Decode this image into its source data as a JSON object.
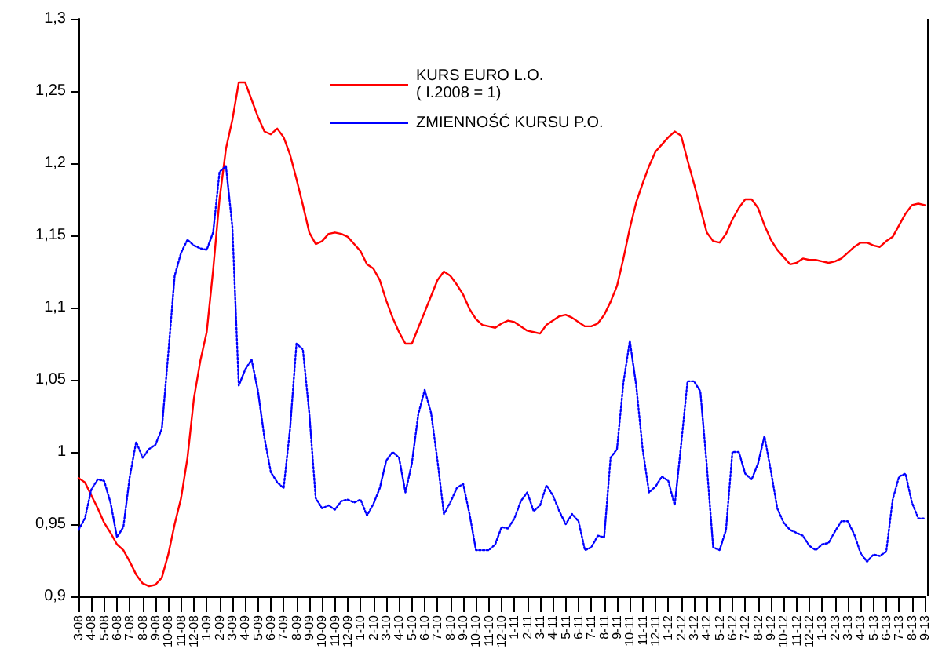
{
  "chart_data": {
    "type": "line",
    "categories": [
      "3-08",
      null,
      "4-08",
      null,
      "5-08",
      null,
      "6-08",
      null,
      "7-08",
      null,
      "8-08",
      null,
      "9-08",
      null,
      "10-08",
      null,
      "11-08",
      null,
      "12-08",
      null,
      "1-09",
      null,
      "2-09",
      null,
      "3-09",
      null,
      "4-09",
      null,
      "5-09",
      null,
      "6-09",
      null,
      "7-09",
      null,
      "8-09",
      null,
      "9-09",
      null,
      "10-09",
      null,
      "11-09",
      null,
      "12-09",
      null,
      "1-10",
      null,
      "2-10",
      null,
      "3-10",
      null,
      "4-10",
      null,
      "5-10",
      null,
      "6-10",
      null,
      "7-10",
      null,
      "8-10",
      null,
      "9-10",
      null,
      "10-10",
      null,
      "11-10",
      null,
      "12-10",
      null,
      "1-11",
      null,
      "2-11",
      null,
      "3-11",
      null,
      "4-11",
      null,
      "5-11",
      null,
      "6-11",
      null,
      "7-11",
      null,
      "8-11",
      null,
      "9-11",
      null,
      "10-11",
      null,
      "11-11",
      null,
      "12-11",
      null,
      "1-12",
      null,
      "2-12",
      null,
      "3-12",
      null,
      "4-12",
      null,
      "5-12",
      null,
      "6-12",
      null,
      "7-12",
      null,
      "8-12",
      null,
      "9-12",
      null,
      "10-12",
      null,
      "11-12",
      null,
      "12-12",
      null,
      "1-13",
      null,
      "2-13",
      null,
      "3-13",
      null,
      "4-13",
      null,
      "5-13",
      null,
      "6-13",
      null,
      "7-13",
      null,
      "8-13",
      null,
      "9-13"
    ],
    "series": [
      {
        "name": "KURS EURO L.O.\n( I.2008 = 1)",
        "color": "#ff0000",
        "line_style": "solid",
        "values": [
          0.982,
          0.979,
          0.97,
          0.961,
          0.951,
          0.944,
          0.936,
          0.932,
          0.924,
          0.915,
          0.909,
          0.907,
          0.908,
          0.913,
          0.929,
          0.95,
          0.968,
          0.996,
          1.037,
          1.063,
          1.083,
          1.126,
          1.175,
          1.21,
          1.23,
          1.256,
          1.256,
          1.244,
          1.232,
          1.222,
          1.22,
          1.224,
          1.218,
          1.206,
          1.189,
          1.171,
          1.152,
          1.144,
          1.146,
          1.151,
          1.152,
          1.151,
          1.149,
          1.144,
          1.139,
          1.13,
          1.127,
          1.119,
          1.105,
          1.093,
          1.083,
          1.075,
          1.075,
          1.086,
          1.097,
          1.108,
          1.119,
          1.125,
          1.122,
          1.116,
          1.109,
          1.099,
          1.092,
          1.088,
          1.087,
          1.086,
          1.089,
          1.091,
          1.09,
          1.087,
          1.084,
          1.083,
          1.082,
          1.088,
          1.091,
          1.094,
          1.095,
          1.093,
          1.09,
          1.087,
          1.087,
          1.089,
          1.095,
          1.104,
          1.115,
          1.134,
          1.155,
          1.173,
          1.186,
          1.198,
          1.208,
          1.213,
          1.218,
          1.222,
          1.219,
          1.202,
          1.186,
          1.169,
          1.152,
          1.146,
          1.145,
          1.151,
          1.161,
          1.169,
          1.175,
          1.175,
          1.169,
          1.157,
          1.147,
          1.14,
          1.135,
          1.13,
          1.131,
          1.134,
          1.133,
          1.133,
          1.132,
          1.131,
          1.132,
          1.134,
          1.138,
          1.142,
          1.145,
          1.145,
          1.143,
          1.142,
          1.146,
          1.149,
          1.157,
          1.165,
          1.171,
          1.172,
          1.171
        ]
      },
      {
        "name": "ZMIENNOŚĆ KURSU P.O.",
        "color": "#0000ff",
        "line_style": "dotted",
        "values": [
          0.946,
          0.954,
          0.974,
          0.981,
          0.98,
          0.965,
          0.941,
          0.948,
          0.983,
          1.007,
          0.996,
          1.002,
          1.005,
          1.016,
          1.068,
          1.122,
          1.138,
          1.147,
          1.143,
          1.141,
          1.14,
          1.152,
          1.194,
          1.198,
          1.156,
          1.046,
          1.057,
          1.064,
          1.042,
          1.01,
          0.986,
          0.979,
          0.975,
          1.016,
          1.075,
          1.071,
          1.027,
          0.968,
          0.961,
          0.963,
          0.96,
          0.966,
          0.967,
          0.965,
          0.967,
          0.956,
          0.964,
          0.975,
          0.994,
          1.0,
          0.996,
          0.972,
          0.992,
          1.026,
          1.043,
          1.027,
          0.994,
          0.957,
          0.965,
          0.975,
          0.978,
          0.957,
          0.932,
          0.932,
          0.932,
          0.936,
          0.948,
          0.947,
          0.954,
          0.966,
          0.972,
          0.959,
          0.963,
          0.977,
          0.97,
          0.959,
          0.95,
          0.957,
          0.952,
          0.932,
          0.934,
          0.942,
          0.941,
          0.996,
          1.002,
          1.048,
          1.077,
          1.046,
          1.002,
          0.972,
          0.976,
          0.983,
          0.98,
          0.963,
          1.005,
          1.049,
          1.049,
          1.042,
          0.991,
          0.934,
          0.932,
          0.946,
          1.0,
          1.0,
          0.985,
          0.981,
          0.992,
          1.011,
          0.987,
          0.961,
          0.951,
          0.946,
          0.944,
          0.942,
          0.935,
          0.932,
          0.936,
          0.937,
          0.945,
          0.952,
          0.952,
          0.943,
          0.93,
          0.924,
          0.929,
          0.928,
          0.931,
          0.967,
          0.983,
          0.985,
          0.965,
          0.954,
          0.954
        ]
      }
    ],
    "ylim": [
      0.9,
      1.3
    ],
    "yticks": [
      {
        "value": 0.9,
        "label": "0,9"
      },
      {
        "value": 0.95,
        "label": "0,95"
      },
      {
        "value": 1,
        "label": "1"
      },
      {
        "value": 1.05,
        "label": "1,05"
      },
      {
        "value": 1.1,
        "label": "1,1"
      },
      {
        "value": 1.15,
        "label": "1,15"
      },
      {
        "value": 1.2,
        "label": "1,2"
      },
      {
        "value": 1.25,
        "label": "1,25"
      },
      {
        "value": 1.3,
        "label": "1,3"
      }
    ],
    "grid": false,
    "legend": "top",
    "marker": "none"
  }
}
